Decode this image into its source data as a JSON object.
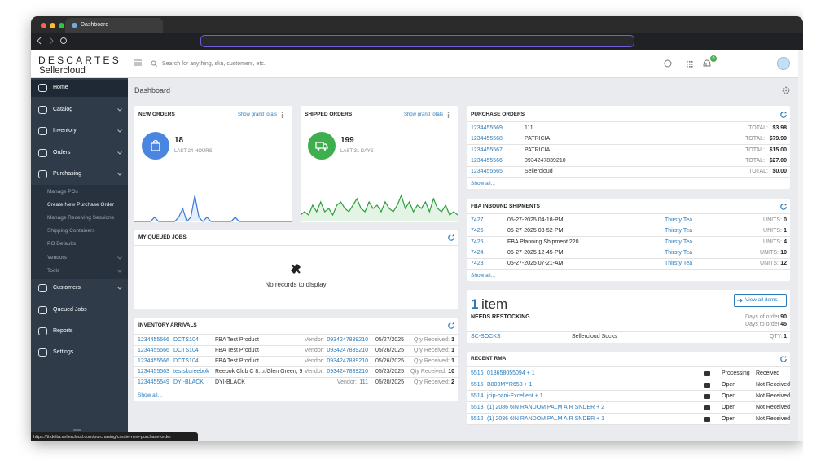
{
  "browser": {
    "tab_title": "Dashboard",
    "status_url": "https://tt.delta.sellercloud.com/purchasing/create-new-purchase-order"
  },
  "header": {
    "logo_top": "DESCARTES",
    "logo_bottom": "Sellercloud",
    "search_placeholder": "Search for anything, sku, customers, etc.",
    "notification_count": "0"
  },
  "sidebar": {
    "items": [
      "Home",
      "Catalog",
      "Inventory",
      "Orders",
      "Purchasing"
    ],
    "submenu": [
      "Manage POs",
      "Create New Purchase Order",
      "Manage Receiving Sessions",
      "Shipping Containers",
      "PO Defaults",
      "Vendors",
      "Tools"
    ],
    "items_after": [
      "Customers",
      "Queued Jobs",
      "Reports",
      "Settings"
    ]
  },
  "page_title": "Dashboard",
  "new_orders": {
    "title": "NEW ORDERS",
    "link": "Show grand totals",
    "count": 18,
    "period": "LAST 24 HOURS",
    "sparkline": [
      0,
      0,
      0,
      0,
      0,
      1,
      0,
      0,
      0,
      0,
      0,
      1,
      3,
      0,
      1,
      6,
      1,
      0,
      1,
      0,
      0,
      0,
      0,
      0,
      0,
      1,
      0,
      0,
      0,
      0,
      0,
      0,
      0,
      0,
      0,
      0,
      0,
      0,
      0,
      0
    ]
  },
  "shipped_orders": {
    "title": "SHIPPED ORDERS",
    "link": "Show grand totals",
    "count": 199,
    "period": "LAST 31 DAYS",
    "sparkline": [
      2,
      3,
      2,
      5,
      3,
      6,
      3,
      4,
      2,
      5,
      6,
      4,
      3,
      5,
      7,
      4,
      3,
      6,
      4,
      5,
      3,
      6,
      4,
      3,
      5,
      8,
      4,
      6,
      3,
      5,
      4,
      6,
      3,
      7,
      4,
      3,
      5,
      2,
      3,
      2
    ]
  },
  "queued_jobs": {
    "title": "MY QUEUED JOBS",
    "empty": "No records to display"
  },
  "inventory_arrivals": {
    "title": "INVENTORY ARRIVALS",
    "vendor_label": "Vendor:",
    "qty_label": "Qty Received:",
    "show_all": "Show all...",
    "rows": [
      [
        "1234455566",
        "DCTS104",
        "FBA Test Product",
        "0934247839210",
        "05/27/2025",
        1
      ],
      [
        "1234455566",
        "DCTS104",
        "FBA Test Product",
        "0934247839210",
        "05/26/2025",
        1
      ],
      [
        "1234455566",
        "DCTS104",
        "FBA Test Product",
        "0934247839210",
        "05/26/2025",
        1
      ],
      [
        "1234455563",
        "testskureebok",
        "Reebok Club C 8...r/Glen Green, 9",
        "0934247839210",
        "05/23/2025",
        10
      ],
      [
        "1234455549",
        "DYI-BLACK",
        "DYI-BLACK",
        "111",
        "05/20/2025",
        2
      ]
    ]
  },
  "purchase_orders": {
    "title": "PURCHASE ORDERS",
    "total_label": "TOTAL:",
    "show_all": "Show all...",
    "rows": [
      [
        "1234455569",
        "111",
        "$3.98"
      ],
      [
        "1234455568",
        "PATRICIA",
        "$79.99"
      ],
      [
        "1234455567",
        "PATRICIA",
        "$15.00"
      ],
      [
        "1234455566",
        "0934247839210",
        "$27.00"
      ],
      [
        "1234455565",
        "Sellercloud",
        "$0.00"
      ]
    ]
  },
  "fba_inbound": {
    "title": "FBA INBOUND SHIPMENTS",
    "units_label": "UNITS:",
    "show_all": "Show all...",
    "rows": [
      [
        "7427",
        "05-27-2025 04-18-PM",
        "Thirsty Tea",
        0
      ],
      [
        "7426",
        "05-27-2025 03-52-PM",
        "Thirsty Tea",
        1
      ],
      [
        "7425",
        "FBA Planning Shipment 220",
        "Thirsty Tea",
        4
      ],
      [
        "7424",
        "05-27-2025 12-45-PM",
        "Thirsty Tea",
        10
      ],
      [
        "7423",
        "05-27-2025 07-21-AM",
        "Thirsty Tea",
        12
      ]
    ]
  },
  "restock": {
    "count": 1,
    "unit": "item",
    "label": "NEEDS RESTOCKING",
    "button": "View all items",
    "days_of_order_label": "Days of order",
    "days_of_order": 90,
    "days_to_order_label": "Days to order",
    "days_to_order": 45,
    "sku": "SC-SOCKS",
    "name": "Sellercloud Socks",
    "qty_label": "QTY:",
    "qty": 1
  },
  "recent_rma": {
    "title": "RECENT RMA",
    "rows": [
      [
        "5516",
        "013658055094 + 1",
        "Processing",
        "Received"
      ],
      [
        "5515",
        "B003MYR658 + 1",
        "Open",
        "Not Received"
      ],
      [
        "5514",
        "jcip-bani-Excellent + 1",
        "Open",
        "Not Received"
      ],
      [
        "5513",
        "(1) 2086 6IN RANDOM PALM AIR SNDER + 2",
        "Open",
        "Not Received"
      ],
      [
        "5512",
        "(1) 2086 6IN RANDOM PALM AIR SNDER + 1",
        "Open",
        "Not Received"
      ]
    ]
  }
}
